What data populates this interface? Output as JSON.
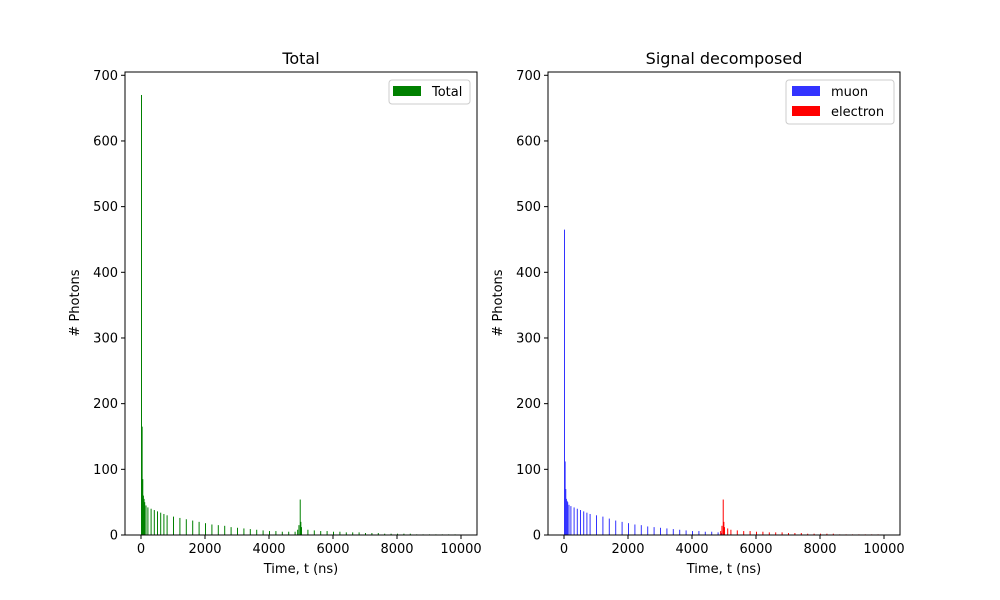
{
  "chart_data": [
    {
      "type": "bar",
      "title": "Total",
      "xlabel": "Time, t (ns)",
      "ylabel": "# Photons",
      "xlim": [
        -500,
        10500
      ],
      "ylim": [
        0,
        705
      ],
      "xticks": [
        0,
        2000,
        4000,
        6000,
        8000,
        10000
      ],
      "yticks": [
        0,
        100,
        200,
        300,
        400,
        500,
        600,
        700
      ],
      "legend": {
        "placement": "top-right",
        "entries": [
          {
            "label": "Total",
            "color": "#008000"
          }
        ]
      },
      "bin_width": 20,
      "series": [
        {
          "name": "Total",
          "color": "#008000",
          "points": [
            [
              0,
              670
            ],
            [
              20,
              165
            ],
            [
              40,
              85
            ],
            [
              60,
              60
            ],
            [
              80,
              55
            ],
            [
              100,
              50
            ],
            [
              140,
              45
            ],
            [
              200,
              42
            ],
            [
              300,
              40
            ],
            [
              400,
              38
            ],
            [
              500,
              36
            ],
            [
              600,
              34
            ],
            [
              700,
              32
            ],
            [
              800,
              30
            ],
            [
              1000,
              28
            ],
            [
              1200,
              26
            ],
            [
              1400,
              24
            ],
            [
              1600,
              22
            ],
            [
              1800,
              20
            ],
            [
              2000,
              18
            ],
            [
              2200,
              16
            ],
            [
              2400,
              15
            ],
            [
              2600,
              14
            ],
            [
              2800,
              12
            ],
            [
              3000,
              11
            ],
            [
              3200,
              10
            ],
            [
              3400,
              9
            ],
            [
              3600,
              8
            ],
            [
              3800,
              7
            ],
            [
              4000,
              6
            ],
            [
              4200,
              6
            ],
            [
              4400,
              5
            ],
            [
              4600,
              5
            ],
            [
              4800,
              5
            ],
            [
              4880,
              8
            ],
            [
              4920,
              15
            ],
            [
              4960,
              54
            ],
            [
              4980,
              20
            ],
            [
              5000,
              12
            ],
            [
              5200,
              8
            ],
            [
              5400,
              7
            ],
            [
              5600,
              6
            ],
            [
              5800,
              6
            ],
            [
              6000,
              5
            ],
            [
              6200,
              5
            ],
            [
              6400,
              4
            ],
            [
              6600,
              4
            ],
            [
              6800,
              4
            ],
            [
              7000,
              3
            ],
            [
              7200,
              3
            ],
            [
              7400,
              3
            ],
            [
              7600,
              2
            ],
            [
              7800,
              2
            ],
            [
              8000,
              2
            ],
            [
              8200,
              2
            ],
            [
              8400,
              2
            ],
            [
              8600,
              1
            ],
            [
              8800,
              1
            ],
            [
              9000,
              1
            ],
            [
              9200,
              1
            ],
            [
              9400,
              1
            ],
            [
              9600,
              1
            ],
            [
              9800,
              1
            ]
          ]
        }
      ]
    },
    {
      "type": "bar",
      "title": "Signal decomposed",
      "xlabel": "Time, t (ns)",
      "ylabel": "# Photons",
      "xlim": [
        -500,
        10500
      ],
      "ylim": [
        0,
        705
      ],
      "xticks": [
        0,
        2000,
        4000,
        6000,
        8000,
        10000
      ],
      "yticks": [
        0,
        100,
        200,
        300,
        400,
        500,
        600,
        700
      ],
      "legend": {
        "placement": "top-right",
        "entries": [
          {
            "label": "muon",
            "color": "#3333ff"
          },
          {
            "label": "electron",
            "color": "#ff0000"
          }
        ]
      },
      "bin_width": 20,
      "series": [
        {
          "name": "muon",
          "color": "#3333ff",
          "points": [
            [
              0,
              465
            ],
            [
              20,
              112
            ],
            [
              40,
              70
            ],
            [
              60,
              55
            ],
            [
              80,
              52
            ],
            [
              100,
              50
            ],
            [
              140,
              46
            ],
            [
              200,
              44
            ],
            [
              300,
              42
            ],
            [
              400,
              40
            ],
            [
              500,
              38
            ],
            [
              600,
              36
            ],
            [
              700,
              34
            ],
            [
              800,
              32
            ],
            [
              1000,
              30
            ],
            [
              1200,
              28
            ],
            [
              1400,
              25
            ],
            [
              1600,
              22
            ],
            [
              1800,
              20
            ],
            [
              2000,
              18
            ],
            [
              2200,
              16
            ],
            [
              2400,
              15
            ],
            [
              2600,
              13
            ],
            [
              2800,
              12
            ],
            [
              3000,
              11
            ],
            [
              3200,
              10
            ],
            [
              3400,
              9
            ],
            [
              3600,
              8
            ],
            [
              3800,
              7
            ],
            [
              4000,
              6
            ],
            [
              4200,
              6
            ],
            [
              4400,
              5
            ],
            [
              4600,
              5
            ],
            [
              4800,
              4
            ],
            [
              4900,
              3
            ],
            [
              5000,
              2
            ],
            [
              5200,
              1
            ]
          ]
        },
        {
          "name": "electron",
          "color": "#ff0000",
          "points": [
            [
              4880,
              6
            ],
            [
              4920,
              14
            ],
            [
              4960,
              54
            ],
            [
              4980,
              20
            ],
            [
              5000,
              12
            ],
            [
              5100,
              10
            ],
            [
              5200,
              8
            ],
            [
              5400,
              7
            ],
            [
              5600,
              6
            ],
            [
              5800,
              6
            ],
            [
              6000,
              5
            ],
            [
              6200,
              5
            ],
            [
              6400,
              4
            ],
            [
              6600,
              4
            ],
            [
              6800,
              4
            ],
            [
              7000,
              3
            ],
            [
              7200,
              3
            ],
            [
              7400,
              3
            ],
            [
              7600,
              2
            ],
            [
              7800,
              2
            ],
            [
              8000,
              2
            ],
            [
              8200,
              2
            ],
            [
              8400,
              2
            ],
            [
              8600,
              1
            ],
            [
              8800,
              1
            ],
            [
              9000,
              1
            ],
            [
              9200,
              1
            ],
            [
              9400,
              1
            ],
            [
              9600,
              1
            ],
            [
              9800,
              1
            ]
          ]
        }
      ]
    }
  ]
}
